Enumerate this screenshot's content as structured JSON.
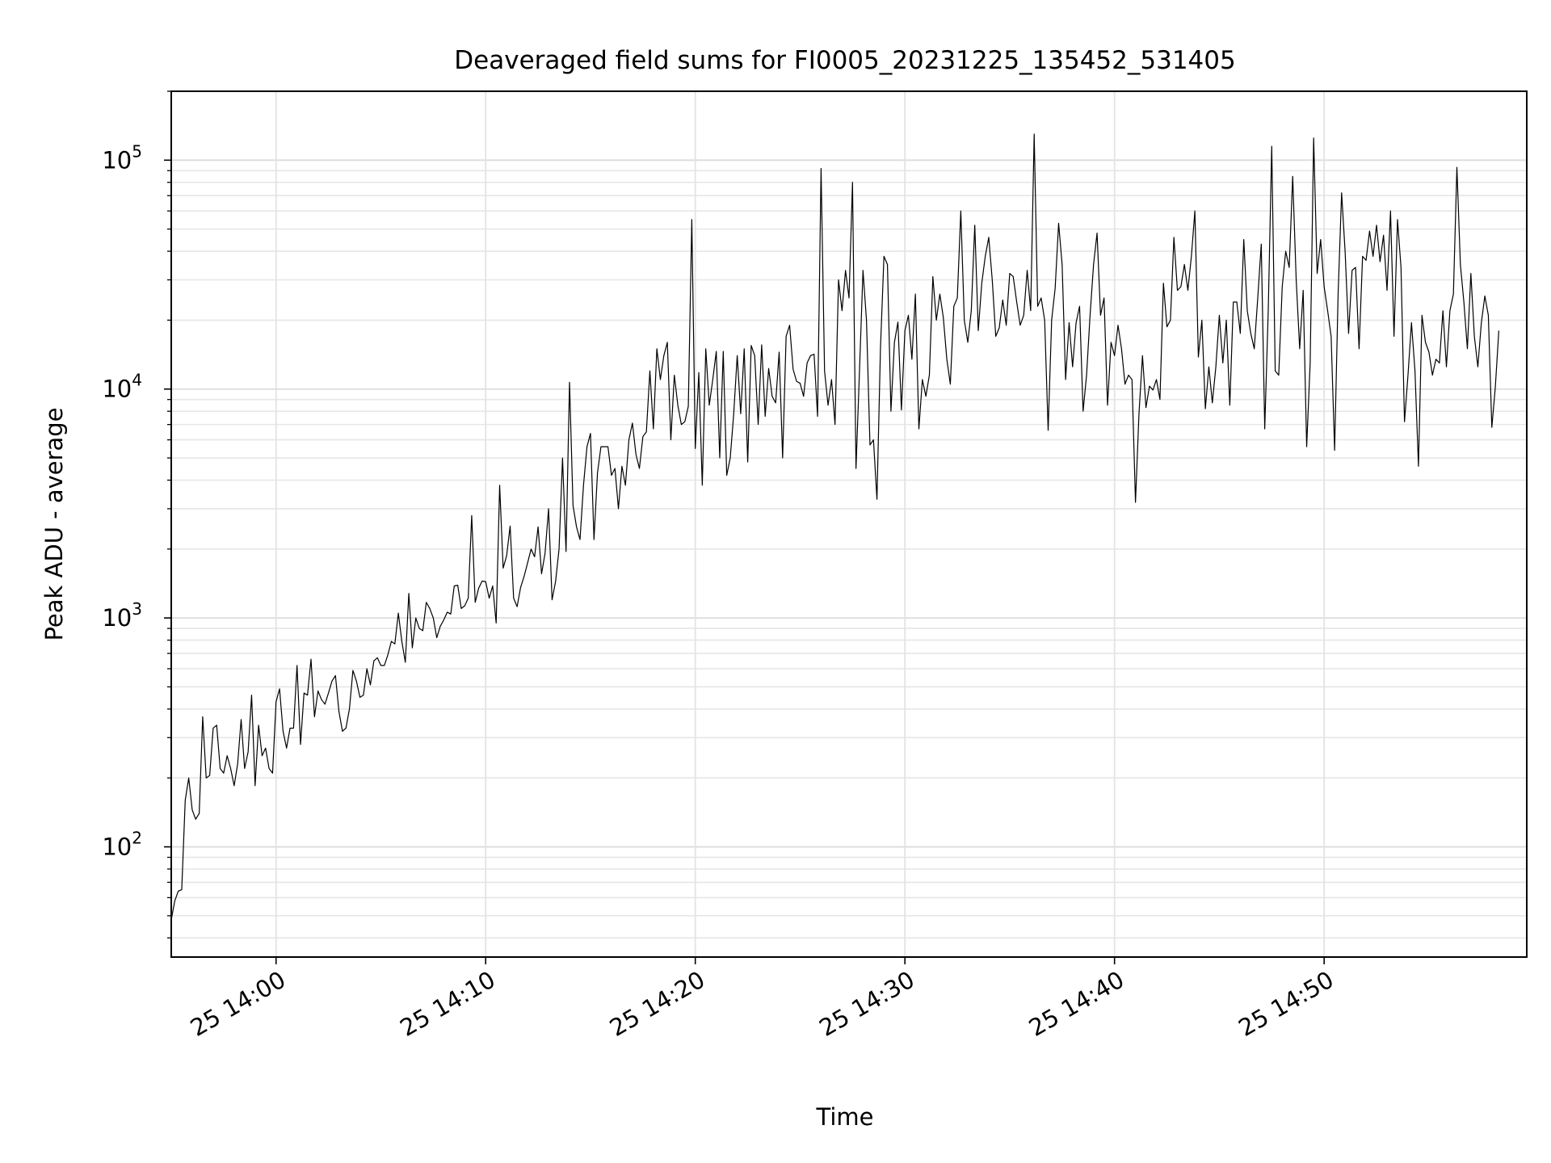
{
  "chart_data": {
    "type": "line",
    "title": "Deaveraged field sums for FI0005_20231225_135452_531405",
    "xlabel": "Time",
    "ylabel": "Peak ADU - average",
    "yscale": "log",
    "xlim": [
      "2023-12-25 13:55:00",
      "2023-12-25 14:59:40"
    ],
    "ylim": [
      33,
      200000
    ],
    "grid": true,
    "x_ticks": [
      {
        "time": "2023-12-25 14:00",
        "label": "25 14:00"
      },
      {
        "time": "2023-12-25 14:10",
        "label": "25 14:10"
      },
      {
        "time": "2023-12-25 14:20",
        "label": "25 14:20"
      },
      {
        "time": "2023-12-25 14:30",
        "label": "25 14:30"
      },
      {
        "time": "2023-12-25 14:40",
        "label": "25 14:40"
      },
      {
        "time": "2023-12-25 14:50",
        "label": "25 14:50"
      }
    ],
    "y_ticks": [
      {
        "value": 100,
        "base": "10",
        "exponent": "2"
      },
      {
        "value": 1000,
        "base": "10",
        "exponent": "3"
      },
      {
        "value": 10000,
        "base": "10",
        "exponent": "4"
      },
      {
        "value": 100000,
        "base": "10",
        "exponent": "5"
      }
    ],
    "line_color": "#000000",
    "series": [
      {
        "x_start": "2023-12-25 13:55:00",
        "x_step_seconds": 10,
        "values": [
          48,
          58,
          64,
          65,
          160,
          200,
          145,
          132,
          140,
          370,
          200,
          205,
          330,
          340,
          220,
          210,
          250,
          220,
          185,
          230,
          360,
          220,
          260,
          460,
          185,
          340,
          250,
          270,
          220,
          210,
          430,
          490,
          320,
          270,
          330,
          330,
          620,
          280,
          470,
          460,
          660,
          370,
          480,
          440,
          420,
          470,
          530,
          560,
          390,
          320,
          330,
          400,
          590,
          530,
          450,
          460,
          600,
          510,
          650,
          670,
          620,
          620,
          690,
          790,
          770,
          1050,
          790,
          640,
          1280,
          740,
          1000,
          900,
          880,
          1170,
          1100,
          1000,
          820,
          920,
          980,
          1060,
          1040,
          1380,
          1390,
          1100,
          1130,
          1220,
          2800,
          1170,
          1350,
          1450,
          1440,
          1220,
          1380,
          950,
          3800,
          1650,
          1870,
          2520,
          1220,
          1120,
          1360,
          1520,
          1740,
          2000,
          1850,
          2500,
          1560,
          1920,
          3000,
          1200,
          1440,
          2000,
          5000,
          1950,
          10700,
          3100,
          2500,
          2200,
          3800,
          5600,
          6400,
          2200,
          4300,
          5600,
          5600,
          5600,
          4200,
          4500,
          3000,
          4600,
          3800,
          6000,
          7100,
          5200,
          4500,
          6200,
          6500,
          12000,
          6700,
          15000,
          11000,
          14000,
          16000,
          6000,
          11500,
          8500,
          7000,
          7200,
          8400,
          55000,
          5500,
          11800,
          3800,
          15000,
          8500,
          11000,
          14600,
          5000,
          14600,
          4200,
          5000,
          7800,
          14000,
          7800,
          15000,
          4800,
          15500,
          14000,
          7000,
          15600,
          7600,
          12300,
          9300,
          8700,
          14500,
          5000,
          17000,
          19000,
          12200,
          10800,
          10600,
          9300,
          13000,
          14000,
          14200,
          7600,
          92000,
          12000,
          8500,
          11000,
          7000,
          30000,
          22000,
          33000,
          25000,
          80000,
          4500,
          12000,
          33000,
          20000,
          5700,
          6000,
          3300,
          15000,
          38000,
          35000,
          8000,
          16000,
          19600,
          8100,
          18000,
          21000,
          13500,
          26000,
          6700,
          11000,
          9300,
          11500,
          31000,
          20000,
          26000,
          20500,
          13500,
          10500,
          23000,
          25000,
          60000,
          20000,
          16000,
          22000,
          52000,
          18000,
          29000,
          38000,
          46000,
          30000,
          17000,
          18500,
          24500,
          19000,
          32000,
          31000,
          24000,
          19000,
          21000,
          33000,
          22000,
          130000,
          23000,
          25000,
          20000,
          6600,
          20000,
          27500,
          53000,
          35000,
          11000,
          19500,
          12500,
          19500,
          23000,
          8000,
          11500,
          21000,
          35000,
          48000,
          21000,
          25000,
          8500,
          16000,
          14000,
          19000,
          15000,
          10500,
          11500,
          11000,
          3200,
          7800,
          14000,
          8300,
          10300,
          9900,
          11000,
          9000,
          29000,
          18700,
          20000,
          46000,
          27000,
          28000,
          35000,
          27000,
          38000,
          60000,
          13800,
          20000,
          8200,
          12500,
          8700,
          12500,
          21000,
          13000,
          20000,
          8500,
          24000,
          24000,
          17500,
          45000,
          22000,
          17500,
          15000,
          25000,
          43000,
          6700,
          22000,
          115000,
          12000,
          11500,
          28000,
          40000,
          34000,
          85000,
          30000,
          15000,
          27000,
          5600,
          13000,
          125000,
          32000,
          45000,
          28000,
          22000,
          17000,
          5400,
          26000,
          72000,
          40000,
          17500,
          33000,
          34000,
          15000,
          38000,
          36500,
          49000,
          38000,
          52000,
          36000,
          47000,
          27000,
          60000,
          17000,
          55000,
          34000,
          7200,
          11500,
          19500,
          12000,
          4600,
          21000,
          16000,
          14500,
          11500,
          13500,
          13000,
          22000,
          12500,
          22000,
          26000,
          93000,
          35000,
          24000,
          15000,
          32000,
          17000,
          12500,
          19500,
          25500,
          21000,
          6800,
          10200,
          18000
        ]
      }
    ]
  }
}
